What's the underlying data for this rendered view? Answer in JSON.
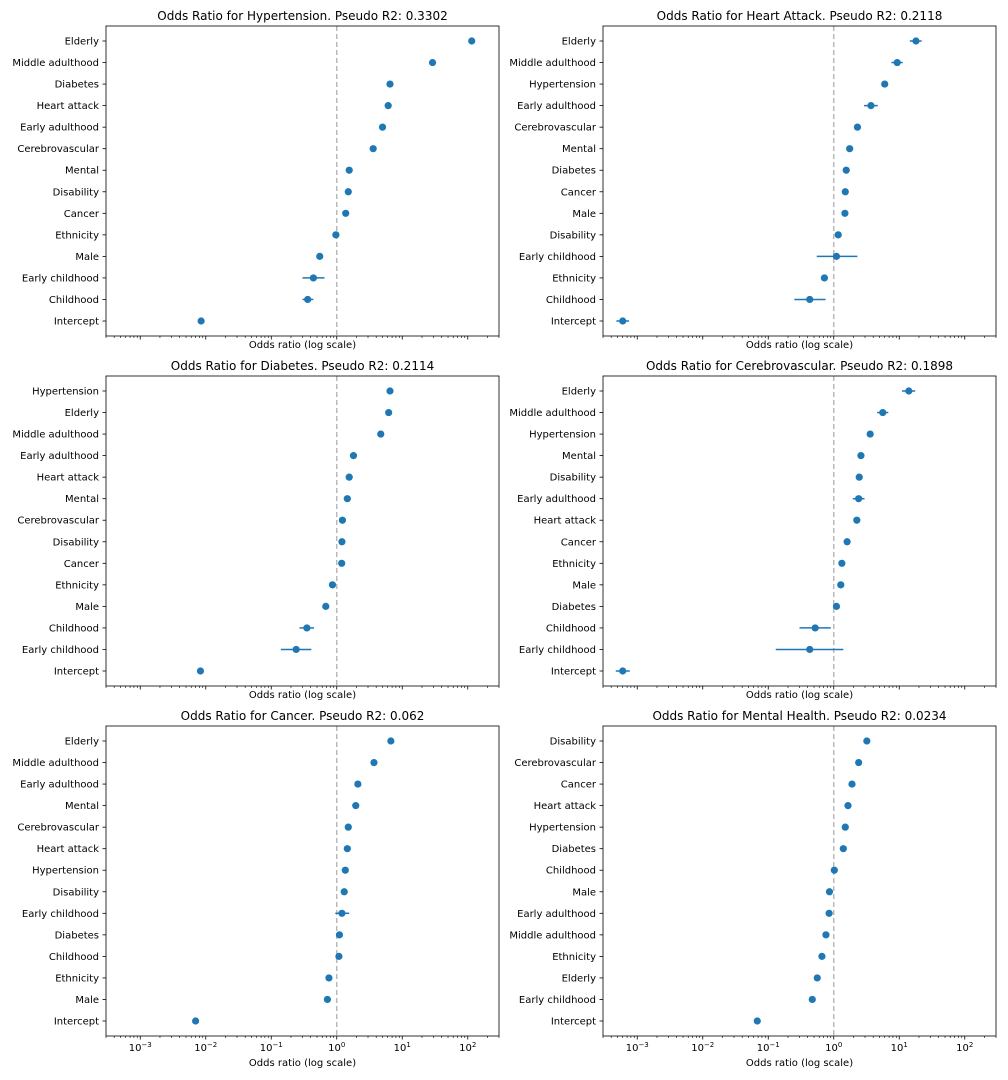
{
  "figure": {
    "xlabel": "Odds ratio (log scale)",
    "xlim": [
      0.0003,
      300
    ],
    "xscale": "log",
    "reference_line_x": 1,
    "xticks": [
      {
        "value": 0.001,
        "base": "10",
        "exp": "−3"
      },
      {
        "value": 0.01,
        "base": "10",
        "exp": "−2"
      },
      {
        "value": 0.1,
        "base": "10",
        "exp": "−1"
      },
      {
        "value": 1,
        "base": "10",
        "exp": "0"
      },
      {
        "value": 10,
        "base": "10",
        "exp": "1"
      },
      {
        "value": 100,
        "base": "10",
        "exp": "2"
      }
    ],
    "colors": {
      "marker": "#1f77b4",
      "reference_line": "#b0b0b0",
      "axes": "#000000"
    }
  },
  "chart_data": [
    {
      "type": "scatter",
      "title": "Odds Ratio for Hypertension. Pseudo R2: 0.3302",
      "xlabel": "Odds ratio (log scale)",
      "tick_labels_visible": false,
      "points": [
        {
          "label": "Elderly",
          "value": 115,
          "ci": [
            108,
            122
          ]
        },
        {
          "label": "Middle adulthood",
          "value": 29,
          "ci": [
            27,
            31
          ]
        },
        {
          "label": "Diabetes",
          "value": 6.5,
          "ci": [
            6.1,
            6.9
          ]
        },
        {
          "label": "Heart attack",
          "value": 6.1,
          "ci": [
            5.6,
            6.6
          ]
        },
        {
          "label": "Early adulthood",
          "value": 5.0,
          "ci": [
            4.7,
            5.3
          ]
        },
        {
          "label": "Cerebrovascular",
          "value": 3.6,
          "ci": [
            3.3,
            3.9
          ]
        },
        {
          "label": "Mental",
          "value": 1.55,
          "ci": [
            1.48,
            1.62
          ]
        },
        {
          "label": "Disability",
          "value": 1.5,
          "ci": [
            1.43,
            1.57
          ]
        },
        {
          "label": "Cancer",
          "value": 1.37,
          "ci": [
            1.3,
            1.44
          ]
        },
        {
          "label": "Ethnicity",
          "value": 0.97,
          "ci": [
            0.93,
            1.01
          ]
        },
        {
          "label": "Male",
          "value": 0.55,
          "ci": [
            0.53,
            0.57
          ]
        },
        {
          "label": "Early childhood",
          "value": 0.44,
          "ci": [
            0.3,
            0.65
          ]
        },
        {
          "label": "Childhood",
          "value": 0.36,
          "ci": [
            0.3,
            0.44
          ]
        },
        {
          "label": "Intercept",
          "value": 0.0085,
          "ci": [
            0.0081,
            0.0089
          ]
        }
      ]
    },
    {
      "type": "scatter",
      "title": "Odds Ratio for Heart Attack. Pseudo R2: 0.2118",
      "xlabel": "Odds ratio (log scale)",
      "tick_labels_visible": false,
      "points": [
        {
          "label": "Elderly",
          "value": 18,
          "ci": [
            14.5,
            22
          ]
        },
        {
          "label": "Middle adulthood",
          "value": 9.3,
          "ci": [
            7.6,
            11.3
          ]
        },
        {
          "label": "Hypertension",
          "value": 6.0,
          "ci": [
            5.6,
            6.4
          ]
        },
        {
          "label": "Early adulthood",
          "value": 3.7,
          "ci": [
            2.9,
            4.7
          ]
        },
        {
          "label": "Cerebrovascular",
          "value": 2.3,
          "ci": [
            2.15,
            2.45
          ]
        },
        {
          "label": "Mental",
          "value": 1.75,
          "ci": [
            1.65,
            1.85
          ]
        },
        {
          "label": "Diabetes",
          "value": 1.55,
          "ci": [
            1.47,
            1.63
          ]
        },
        {
          "label": "Cancer",
          "value": 1.5,
          "ci": [
            1.42,
            1.58
          ]
        },
        {
          "label": "Male",
          "value": 1.48,
          "ci": [
            1.42,
            1.54
          ]
        },
        {
          "label": "Disability",
          "value": 1.17,
          "ci": [
            1.1,
            1.24
          ]
        },
        {
          "label": "Early childhood",
          "value": 1.1,
          "ci": [
            0.55,
            2.3
          ]
        },
        {
          "label": "Ethnicity",
          "value": 0.72,
          "ci": [
            0.68,
            0.76
          ]
        },
        {
          "label": "Childhood",
          "value": 0.43,
          "ci": [
            0.25,
            0.75
          ]
        },
        {
          "label": "Intercept",
          "value": 0.0006,
          "ci": [
            0.00048,
            0.00075
          ]
        }
      ]
    },
    {
      "type": "scatter",
      "title": "Odds Ratio for Diabetes. Pseudo R2: 0.2114",
      "xlabel": "Odds ratio (log scale)",
      "tick_labels_visible": false,
      "points": [
        {
          "label": "Hypertension",
          "value": 6.5,
          "ci": [
            6.1,
            6.9
          ]
        },
        {
          "label": "Elderly",
          "value": 6.2,
          "ci": [
            5.8,
            6.6
          ]
        },
        {
          "label": "Middle adulthood",
          "value": 4.7,
          "ci": [
            4.4,
            5.0
          ]
        },
        {
          "label": "Early adulthood",
          "value": 1.8,
          "ci": [
            1.68,
            1.92
          ]
        },
        {
          "label": "Heart attack",
          "value": 1.55,
          "ci": [
            1.45,
            1.65
          ]
        },
        {
          "label": "Mental",
          "value": 1.45,
          "ci": [
            1.38,
            1.52
          ]
        },
        {
          "label": "Cerebrovascular",
          "value": 1.22,
          "ci": [
            1.15,
            1.29
          ]
        },
        {
          "label": "Disability",
          "value": 1.2,
          "ci": [
            1.14,
            1.26
          ]
        },
        {
          "label": "Cancer",
          "value": 1.19,
          "ci": [
            1.13,
            1.25
          ]
        },
        {
          "label": "Ethnicity",
          "value": 0.86,
          "ci": [
            0.82,
            0.9
          ]
        },
        {
          "label": "Male",
          "value": 0.68,
          "ci": [
            0.65,
            0.71
          ]
        },
        {
          "label": "Childhood",
          "value": 0.35,
          "ci": [
            0.27,
            0.45
          ]
        },
        {
          "label": "Early childhood",
          "value": 0.24,
          "ci": [
            0.14,
            0.41
          ]
        },
        {
          "label": "Intercept",
          "value": 0.0083,
          "ci": [
            0.0079,
            0.0087
          ]
        }
      ]
    },
    {
      "type": "scatter",
      "title": "Odds Ratio for Cerebrovascular. Pseudo R2: 0.1898",
      "xlabel": "Odds ratio (log scale)",
      "tick_labels_visible": false,
      "points": [
        {
          "label": "Elderly",
          "value": 14,
          "ci": [
            11,
            17.5
          ]
        },
        {
          "label": "Middle adulthood",
          "value": 5.6,
          "ci": [
            4.6,
            6.8
          ]
        },
        {
          "label": "Hypertension",
          "value": 3.6,
          "ci": [
            3.35,
            3.85
          ]
        },
        {
          "label": "Mental",
          "value": 2.6,
          "ci": [
            2.45,
            2.75
          ]
        },
        {
          "label": "Disability",
          "value": 2.45,
          "ci": [
            2.3,
            2.6
          ]
        },
        {
          "label": "Early adulthood",
          "value": 2.4,
          "ci": [
            1.95,
            2.95
          ]
        },
        {
          "label": "Heart attack",
          "value": 2.25,
          "ci": [
            2.1,
            2.4
          ]
        },
        {
          "label": "Cancer",
          "value": 1.6,
          "ci": [
            1.48,
            1.73
          ]
        },
        {
          "label": "Ethnicity",
          "value": 1.33,
          "ci": [
            1.22,
            1.45
          ]
        },
        {
          "label": "Male",
          "value": 1.28,
          "ci": [
            1.22,
            1.34
          ]
        },
        {
          "label": "Diabetes",
          "value": 1.1,
          "ci": [
            1.04,
            1.16
          ]
        },
        {
          "label": "Childhood",
          "value": 0.52,
          "ci": [
            0.3,
            0.9
          ]
        },
        {
          "label": "Early childhood",
          "value": 0.43,
          "ci": [
            0.13,
            1.4
          ]
        },
        {
          "label": "Intercept",
          "value": 0.0006,
          "ci": [
            0.00047,
            0.00077
          ]
        }
      ]
    },
    {
      "type": "scatter",
      "title": "Odds Ratio for Cancer. Pseudo R2: 0.062",
      "xlabel": "Odds ratio (log scale)",
      "tick_labels_visible": true,
      "points": [
        {
          "label": "Elderly",
          "value": 6.7,
          "ci": [
            6.3,
            7.1
          ]
        },
        {
          "label": "Middle adulthood",
          "value": 3.7,
          "ci": [
            3.45,
            3.95
          ]
        },
        {
          "label": "Early adulthood",
          "value": 2.1,
          "ci": [
            1.95,
            2.25
          ]
        },
        {
          "label": "Mental",
          "value": 1.95,
          "ci": [
            1.85,
            2.05
          ]
        },
        {
          "label": "Cerebrovascular",
          "value": 1.5,
          "ci": [
            1.4,
            1.6
          ]
        },
        {
          "label": "Heart attack",
          "value": 1.45,
          "ci": [
            1.36,
            1.54
          ]
        },
        {
          "label": "Hypertension",
          "value": 1.35,
          "ci": [
            1.29,
            1.41
          ]
        },
        {
          "label": "Disability",
          "value": 1.3,
          "ci": [
            1.24,
            1.36
          ]
        },
        {
          "label": "Early childhood",
          "value": 1.2,
          "ci": [
            0.95,
            1.55
          ]
        },
        {
          "label": "Diabetes",
          "value": 1.1,
          "ci": [
            1.04,
            1.16
          ]
        },
        {
          "label": "Childhood",
          "value": 1.08,
          "ci": [
            1.0,
            1.17
          ]
        },
        {
          "label": "Ethnicity",
          "value": 0.76,
          "ci": [
            0.72,
            0.8
          ]
        },
        {
          "label": "Male",
          "value": 0.72,
          "ci": [
            0.69,
            0.75
          ]
        },
        {
          "label": "Intercept",
          "value": 0.007,
          "ci": [
            0.0066,
            0.0074
          ]
        }
      ]
    },
    {
      "type": "scatter",
      "title": "Odds Ratio for Mental Health. Pseudo R2: 0.0234",
      "xlabel": "Odds ratio (log scale)",
      "tick_labels_visible": true,
      "points": [
        {
          "label": "Disability",
          "value": 3.2,
          "ci": [
            3.05,
            3.35
          ]
        },
        {
          "label": "Cerebrovascular",
          "value": 2.4,
          "ci": [
            2.25,
            2.55
          ]
        },
        {
          "label": "Cancer",
          "value": 1.9,
          "ci": [
            1.8,
            2.0
          ]
        },
        {
          "label": "Heart attack",
          "value": 1.65,
          "ci": [
            1.56,
            1.74
          ]
        },
        {
          "label": "Hypertension",
          "value": 1.5,
          "ci": [
            1.44,
            1.56
          ]
        },
        {
          "label": "Diabetes",
          "value": 1.4,
          "ci": [
            1.33,
            1.47
          ]
        },
        {
          "label": "Childhood",
          "value": 1.02,
          "ci": [
            0.94,
            1.1
          ]
        },
        {
          "label": "Male",
          "value": 0.86,
          "ci": [
            0.83,
            0.89
          ]
        },
        {
          "label": "Early adulthood",
          "value": 0.85,
          "ci": [
            0.8,
            0.9
          ]
        },
        {
          "label": "Middle adulthood",
          "value": 0.76,
          "ci": [
            0.72,
            0.8
          ]
        },
        {
          "label": "Ethnicity",
          "value": 0.66,
          "ci": [
            0.62,
            0.7
          ]
        },
        {
          "label": "Elderly",
          "value": 0.56,
          "ci": [
            0.53,
            0.59
          ]
        },
        {
          "label": "Early childhood",
          "value": 0.47,
          "ci": [
            0.43,
            0.51
          ]
        },
        {
          "label": "Intercept",
          "value": 0.068,
          "ci": [
            0.065,
            0.071
          ]
        }
      ]
    }
  ]
}
